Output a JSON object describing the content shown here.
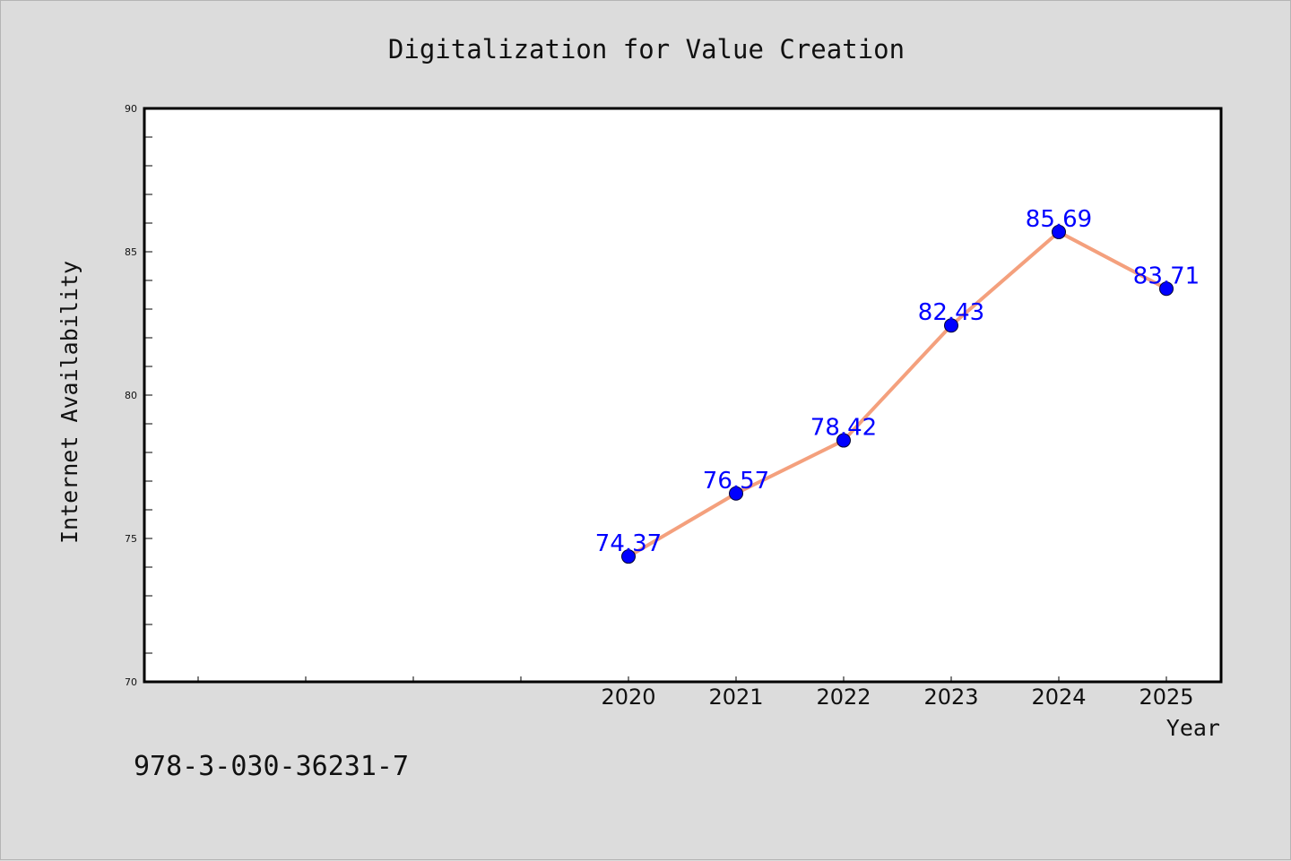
{
  "chart_data": {
    "type": "line",
    "title": "Digitalization for Value Creation",
    "xlabel": "Year",
    "ylabel": "Internet Availability",
    "categories": [
      "2020",
      "2021",
      "2022",
      "2023",
      "2024",
      "2025"
    ],
    "series": [
      {
        "values": [
          74.37,
          76.57,
          78.42,
          82.43,
          85.69,
          83.71
        ],
        "data_labels": [
          "74.37",
          "76.57",
          "78.42",
          "82.43",
          "85.69",
          "83.71"
        ]
      }
    ],
    "ylim": [
      70,
      90
    ],
    "yticks": [
      "70",
      "75",
      "80",
      "85",
      "90"
    ],
    "grid": false,
    "line_color": "#f4a07d",
    "marker_color": "#0000ff",
    "label_color": "#0000ff"
  },
  "footer": {
    "isbn": "978-3-030-36231-7"
  }
}
